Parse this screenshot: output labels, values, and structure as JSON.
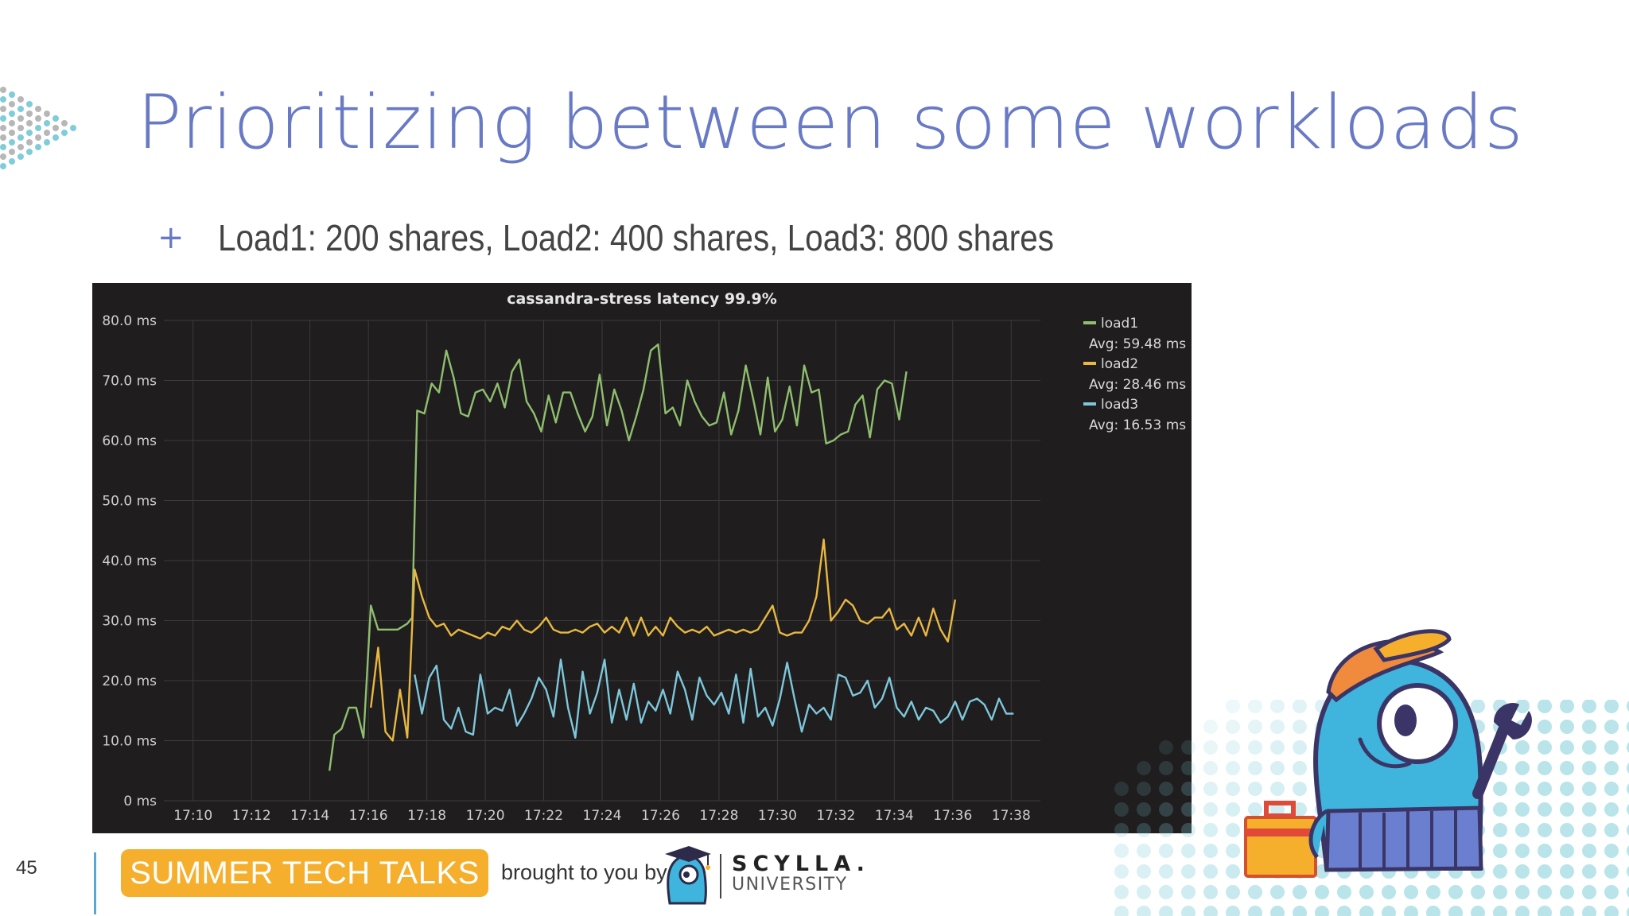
{
  "slide": {
    "title": "Prioritizing between some workloads",
    "bullet_marker": "+",
    "bullet_text": "Load1: 200 shares, Load2: 400 shares, Load3: 800 shares",
    "number": "45"
  },
  "footer": {
    "badge": "SUMMER TECH TALKS",
    "brought_by": "brought to you by",
    "brand_name": "SCYLLA.",
    "brand_sub": "UNIVERSITY"
  },
  "colors": {
    "title": "#6879c5",
    "badge": "#f6ae2d",
    "chart_bg": "#1f1d1e",
    "load1": "#8fbf6e",
    "load2": "#e8b840",
    "load3": "#7ec7db"
  },
  "icons": [
    "dot-pattern-left",
    "dot-pattern-right",
    "scylla-mascot",
    "scylla-mini-mascot",
    "toolbox-icon",
    "wrench-icon"
  ],
  "chart_data": {
    "type": "line",
    "title": "cassandra-stress latency 99.9%",
    "y_ticks": [
      "0 ms",
      "10.0 ms",
      "20.0 ms",
      "30.0 ms",
      "40.0 ms",
      "50.0 ms",
      "60.0 ms",
      "70.0 ms",
      "80.0 ms"
    ],
    "ylim": [
      0,
      80
    ],
    "x_ticks": [
      "17:10",
      "17:12",
      "17:14",
      "17:16",
      "17:18",
      "17:20",
      "17:22",
      "17:24",
      "17:26",
      "17:28",
      "17:30",
      "17:32",
      "17:34",
      "17:36",
      "17:38"
    ],
    "xlim": [
      "17:09:00",
      "17:39:00"
    ],
    "grid": true,
    "legend_position": "right",
    "series": [
      {
        "name": "load1",
        "avg_label": "Avg: 59.48 ms",
        "color": "#8fbf6e",
        "points": [
          [
            "17:14:40",
            5
          ],
          [
            "17:14:50",
            11
          ],
          [
            "17:15:05",
            12
          ],
          [
            "17:15:20",
            15.5
          ],
          [
            "17:15:35",
            15.5
          ],
          [
            "17:15:50",
            10.5
          ],
          [
            "17:16:05",
            32.5
          ],
          [
            "17:16:20",
            28.5
          ],
          [
            "17:16:40",
            28.5
          ],
          [
            "17:17:00",
            28.5
          ],
          [
            "17:17:20",
            29.5
          ],
          [
            "17:17:30",
            30.5
          ],
          [
            "17:17:40",
            65
          ],
          [
            "17:17:55",
            64.5
          ],
          [
            "17:18:10",
            69.5
          ],
          [
            "17:18:25",
            68
          ],
          [
            "17:18:40",
            75
          ],
          [
            "17:18:55",
            70.5
          ],
          [
            "17:19:10",
            64.5
          ],
          [
            "17:19:25",
            64
          ],
          [
            "17:19:40",
            68
          ],
          [
            "17:19:55",
            68.5
          ],
          [
            "17:20:10",
            66.5
          ],
          [
            "17:20:25",
            69.5
          ],
          [
            "17:20:40",
            65.5
          ],
          [
            "17:20:55",
            71.5
          ],
          [
            "17:21:10",
            73.5
          ],
          [
            "17:21:25",
            66.5
          ],
          [
            "17:21:40",
            64.5
          ],
          [
            "17:21:55",
            61.5
          ],
          [
            "17:22:10",
            67.5
          ],
          [
            "17:22:25",
            63
          ],
          [
            "17:22:40",
            68
          ],
          [
            "17:22:55",
            68
          ],
          [
            "17:23:10",
            64.5
          ],
          [
            "17:23:25",
            61.5
          ],
          [
            "17:23:40",
            64
          ],
          [
            "17:23:55",
            71
          ],
          [
            "17:24:10",
            62.5
          ],
          [
            "17:24:25",
            68.5
          ],
          [
            "17:24:40",
            65
          ],
          [
            "17:24:55",
            60
          ],
          [
            "17:25:10",
            64
          ],
          [
            "17:25:25",
            68.5
          ],
          [
            "17:25:40",
            75
          ],
          [
            "17:25:55",
            76
          ],
          [
            "17:26:10",
            64.5
          ],
          [
            "17:26:25",
            65.5
          ],
          [
            "17:26:40",
            62.5
          ],
          [
            "17:26:55",
            70
          ],
          [
            "17:27:10",
            66.5
          ],
          [
            "17:27:25",
            64
          ],
          [
            "17:27:40",
            62.5
          ],
          [
            "17:27:55",
            63
          ],
          [
            "17:28:10",
            68
          ],
          [
            "17:28:25",
            61
          ],
          [
            "17:28:40",
            65
          ],
          [
            "17:28:55",
            72.5
          ],
          [
            "17:29:10",
            67
          ],
          [
            "17:29:25",
            61
          ],
          [
            "17:29:40",
            70.5
          ],
          [
            "17:29:55",
            61.5
          ],
          [
            "17:30:10",
            63.5
          ],
          [
            "17:30:25",
            69
          ],
          [
            "17:30:40",
            62.5
          ],
          [
            "17:30:55",
            72.5
          ],
          [
            "17:31:10",
            68
          ],
          [
            "17:31:25",
            68.5
          ],
          [
            "17:31:40",
            59.5
          ],
          [
            "17:31:55",
            60
          ],
          [
            "17:32:10",
            61
          ],
          [
            "17:32:25",
            61.5
          ],
          [
            "17:32:40",
            66
          ],
          [
            "17:32:55",
            67.5
          ],
          [
            "17:33:10",
            60.5
          ],
          [
            "17:33:25",
            68.5
          ],
          [
            "17:33:40",
            70
          ],
          [
            "17:33:55",
            69.5
          ],
          [
            "17:34:10",
            63.5
          ],
          [
            "17:34:25",
            71.5
          ]
        ]
      },
      {
        "name": "load2",
        "avg_label": "Avg: 28.46 ms",
        "color": "#e8b840",
        "points": [
          [
            "17:16:05",
            15.5
          ],
          [
            "17:16:20",
            25.5
          ],
          [
            "17:16:35",
            11.5
          ],
          [
            "17:16:50",
            10
          ],
          [
            "17:17:05",
            18.5
          ],
          [
            "17:17:20",
            10.5
          ],
          [
            "17:17:35",
            38.5
          ],
          [
            "17:17:50",
            34
          ],
          [
            "17:18:05",
            30.5
          ],
          [
            "17:18:20",
            29
          ],
          [
            "17:18:35",
            29.5
          ],
          [
            "17:18:50",
            27.5
          ],
          [
            "17:19:05",
            28.5
          ],
          [
            "17:19:20",
            28
          ],
          [
            "17:19:35",
            27.5
          ],
          [
            "17:19:50",
            27
          ],
          [
            "17:20:05",
            28
          ],
          [
            "17:20:20",
            27.5
          ],
          [
            "17:20:35",
            29
          ],
          [
            "17:20:50",
            28.5
          ],
          [
            "17:21:05",
            30
          ],
          [
            "17:21:20",
            28.5
          ],
          [
            "17:21:35",
            28
          ],
          [
            "17:21:50",
            29
          ],
          [
            "17:22:05",
            30.5
          ],
          [
            "17:22:20",
            28.5
          ],
          [
            "17:22:35",
            28
          ],
          [
            "17:22:50",
            28
          ],
          [
            "17:23:05",
            28.5
          ],
          [
            "17:23:20",
            28
          ],
          [
            "17:23:35",
            29
          ],
          [
            "17:23:50",
            29.5
          ],
          [
            "17:24:05",
            28
          ],
          [
            "17:24:20",
            29
          ],
          [
            "17:24:35",
            28
          ],
          [
            "17:24:50",
            30.5
          ],
          [
            "17:25:05",
            27.5
          ],
          [
            "17:25:20",
            30.5
          ],
          [
            "17:25:35",
            27.5
          ],
          [
            "17:25:50",
            29
          ],
          [
            "17:26:05",
            27.5
          ],
          [
            "17:26:20",
            30.5
          ],
          [
            "17:26:35",
            29
          ],
          [
            "17:26:50",
            28
          ],
          [
            "17:27:05",
            28.5
          ],
          [
            "17:27:20",
            28
          ],
          [
            "17:27:35",
            29
          ],
          [
            "17:27:50",
            27.5
          ],
          [
            "17:28:05",
            28
          ],
          [
            "17:28:20",
            28.5
          ],
          [
            "17:28:35",
            28
          ],
          [
            "17:28:50",
            28.5
          ],
          [
            "17:29:05",
            28
          ],
          [
            "17:29:20",
            28.5
          ],
          [
            "17:29:35",
            30.5
          ],
          [
            "17:29:50",
            32.5
          ],
          [
            "17:30:05",
            28
          ],
          [
            "17:30:20",
            27.5
          ],
          [
            "17:30:35",
            28
          ],
          [
            "17:30:50",
            28
          ],
          [
            "17:31:05",
            30
          ],
          [
            "17:31:20",
            34
          ],
          [
            "17:31:35",
            43.5
          ],
          [
            "17:31:50",
            30
          ],
          [
            "17:32:05",
            31.5
          ],
          [
            "17:32:20",
            33.5
          ],
          [
            "17:32:35",
            32.5
          ],
          [
            "17:32:50",
            30
          ],
          [
            "17:33:05",
            29.5
          ],
          [
            "17:33:20",
            30.5
          ],
          [
            "17:33:35",
            30.5
          ],
          [
            "17:33:50",
            32
          ],
          [
            "17:34:05",
            28.5
          ],
          [
            "17:34:20",
            29.5
          ],
          [
            "17:34:35",
            27.5
          ],
          [
            "17:34:50",
            30.5
          ],
          [
            "17:35:05",
            27.5
          ],
          [
            "17:35:20",
            32
          ],
          [
            "17:35:35",
            28.5
          ],
          [
            "17:35:50",
            26.5
          ],
          [
            "17:36:05",
            33.5
          ]
        ]
      },
      {
        "name": "load3",
        "avg_label": "Avg: 16.53 ms",
        "color": "#7ec7db",
        "points": [
          [
            "17:17:35",
            21
          ],
          [
            "17:17:50",
            14.5
          ],
          [
            "17:18:05",
            20.5
          ],
          [
            "17:18:20",
            22.5
          ],
          [
            "17:18:35",
            13.5
          ],
          [
            "17:18:50",
            12
          ],
          [
            "17:19:05",
            15.5
          ],
          [
            "17:19:20",
            11.5
          ],
          [
            "17:19:35",
            11
          ],
          [
            "17:19:50",
            21
          ],
          [
            "17:20:05",
            14.5
          ],
          [
            "17:20:20",
            15.5
          ],
          [
            "17:20:35",
            15
          ],
          [
            "17:20:50",
            18.5
          ],
          [
            "17:21:05",
            12.5
          ],
          [
            "17:21:20",
            14.5
          ],
          [
            "17:21:35",
            17
          ],
          [
            "17:21:50",
            20.5
          ],
          [
            "17:22:05",
            18.5
          ],
          [
            "17:22:20",
            14
          ],
          [
            "17:22:35",
            23.5
          ],
          [
            "17:22:50",
            15.5
          ],
          [
            "17:23:05",
            10.5
          ],
          [
            "17:23:20",
            21.5
          ],
          [
            "17:23:35",
            14.5
          ],
          [
            "17:23:50",
            18
          ],
          [
            "17:24:05",
            23.5
          ],
          [
            "17:24:20",
            13
          ],
          [
            "17:24:35",
            18.5
          ],
          [
            "17:24:50",
            13.5
          ],
          [
            "17:25:05",
            19.5
          ],
          [
            "17:25:20",
            13
          ],
          [
            "17:25:35",
            16.5
          ],
          [
            "17:25:50",
            15
          ],
          [
            "17:26:05",
            18.5
          ],
          [
            "17:26:20",
            14.5
          ],
          [
            "17:26:35",
            21.5
          ],
          [
            "17:26:50",
            18.5
          ],
          [
            "17:27:05",
            13.5
          ],
          [
            "17:27:20",
            20.5
          ],
          [
            "17:27:35",
            17.5
          ],
          [
            "17:27:50",
            16
          ],
          [
            "17:28:05",
            18
          ],
          [
            "17:28:20",
            14.5
          ],
          [
            "17:28:35",
            21
          ],
          [
            "17:28:50",
            13
          ],
          [
            "17:29:05",
            22
          ],
          [
            "17:29:20",
            14
          ],
          [
            "17:29:35",
            15.5
          ],
          [
            "17:29:50",
            12.5
          ],
          [
            "17:30:05",
            17
          ],
          [
            "17:30:20",
            23
          ],
          [
            "17:30:35",
            17
          ],
          [
            "17:30:50",
            11.5
          ],
          [
            "17:31:05",
            16
          ],
          [
            "17:31:20",
            14.5
          ],
          [
            "17:31:35",
            15.5
          ],
          [
            "17:31:50",
            13.5
          ],
          [
            "17:32:05",
            21
          ],
          [
            "17:32:20",
            20.5
          ],
          [
            "17:32:35",
            17.5
          ],
          [
            "17:32:50",
            18
          ],
          [
            "17:33:05",
            20
          ],
          [
            "17:33:20",
            15.5
          ],
          [
            "17:33:35",
            17
          ],
          [
            "17:33:50",
            20.5
          ],
          [
            "17:34:05",
            15.5
          ],
          [
            "17:34:20",
            14
          ],
          [
            "17:34:35",
            16.5
          ],
          [
            "17:34:50",
            13.5
          ],
          [
            "17:35:05",
            15.5
          ],
          [
            "17:35:20",
            15
          ],
          [
            "17:35:35",
            13
          ],
          [
            "17:35:50",
            14
          ],
          [
            "17:36:05",
            16.5
          ],
          [
            "17:36:20",
            13.5
          ],
          [
            "17:36:35",
            16.5
          ],
          [
            "17:36:50",
            17
          ],
          [
            "17:37:05",
            16
          ],
          [
            "17:37:20",
            13.5
          ],
          [
            "17:37:35",
            17
          ],
          [
            "17:37:50",
            14.5
          ],
          [
            "17:38:05",
            14.5
          ]
        ]
      }
    ]
  }
}
